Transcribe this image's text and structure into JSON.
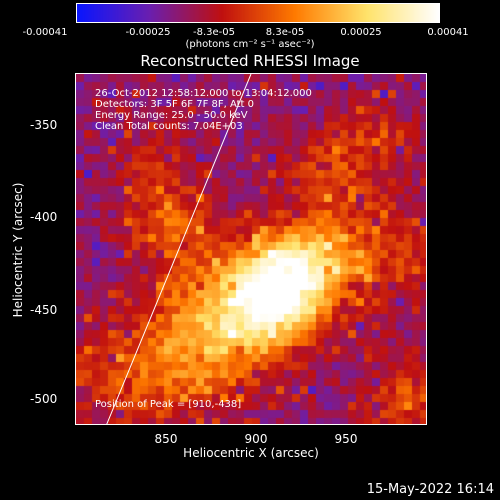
{
  "colorbar": {
    "ticks": [
      "-0.00041",
      "-0.00025",
      "-8.3e-05",
      "8.3e-05",
      "0.00025",
      "0.00041"
    ],
    "units": "(photons cm⁻² s⁻¹ asec⁻²)",
    "colors": [
      "#0a16ff",
      "#6b1fb0",
      "#c01010",
      "#ff7a00",
      "#ffe36b",
      "#ffffff"
    ]
  },
  "plot": {
    "title": "Reconstructed RHESSI Image",
    "info": [
      "26-Oct-2012 12:58:12.000 to 13:04:12.000",
      "Detectors: 3F 5F 6F 7F 8F, Att 0",
      "Energy Range: 25.0 - 50.0 keV",
      "Clean    Total counts: 7.04E+03"
    ],
    "peak_label": "Position of Peak = [910,-438]",
    "xlabel": "Heliocentric X (arcsec)",
    "ylabel": "Heliocentric Y (arcsec)",
    "xticks": [
      "850",
      "900",
      "950"
    ],
    "yticks": [
      "-350",
      "-400",
      "-450",
      "-500"
    ]
  },
  "footer": {
    "date": "15-May-2022 16:14"
  },
  "chart_data": {
    "type": "heatmap",
    "title": "Reconstructed RHESSI Image",
    "xlabel": "Heliocentric X (arcsec)",
    "ylabel": "Heliocentric Y (arcsec)",
    "xlim": [
      805,
      990
    ],
    "ylim": [
      -515,
      -329
    ],
    "peak": [
      910,
      -438
    ]
  }
}
